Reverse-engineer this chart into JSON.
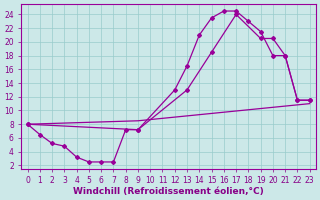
{
  "background_color": "#cce8e8",
  "line_color": "#990099",
  "marker_color": "#990099",
  "xlabel": "Windchill (Refroidissement éolien,°C)",
  "xlim": [
    -0.5,
    23.5
  ],
  "ylim": [
    1.5,
    25.5
  ],
  "yticks": [
    2,
    4,
    6,
    8,
    10,
    12,
    14,
    16,
    18,
    20,
    22,
    24
  ],
  "xticks": [
    0,
    1,
    2,
    3,
    4,
    5,
    6,
    7,
    8,
    9,
    10,
    11,
    12,
    13,
    14,
    15,
    16,
    17,
    18,
    19,
    20,
    21,
    22,
    23
  ],
  "curve1_x": [
    0,
    1,
    2,
    3,
    4,
    5,
    6,
    7,
    8,
    9,
    12,
    13,
    14,
    15,
    16,
    17,
    18,
    19,
    20,
    21,
    22,
    23
  ],
  "curve1_y": [
    8,
    6.5,
    5.2,
    4.8,
    3.2,
    2.5,
    2.5,
    2.5,
    7.2,
    7.2,
    13.0,
    16.5,
    21.0,
    23.5,
    24.5,
    24.5,
    23.0,
    21.5,
    18.0,
    18.0,
    11.5,
    11.5
  ],
  "curve2_x": [
    0,
    9,
    13,
    15,
    17,
    19,
    20,
    21,
    22,
    23
  ],
  "curve2_y": [
    8,
    7.2,
    13.0,
    18.5,
    24.0,
    20.5,
    20.5,
    18.0,
    11.5,
    11.5
  ],
  "curve3_x": [
    0,
    9,
    23
  ],
  "curve3_y": [
    8,
    8.5,
    11.0
  ],
  "grid_color": "#99cccc",
  "font_color": "#880088",
  "tick_fontsize": 5.5,
  "xlabel_fontsize": 6.5
}
